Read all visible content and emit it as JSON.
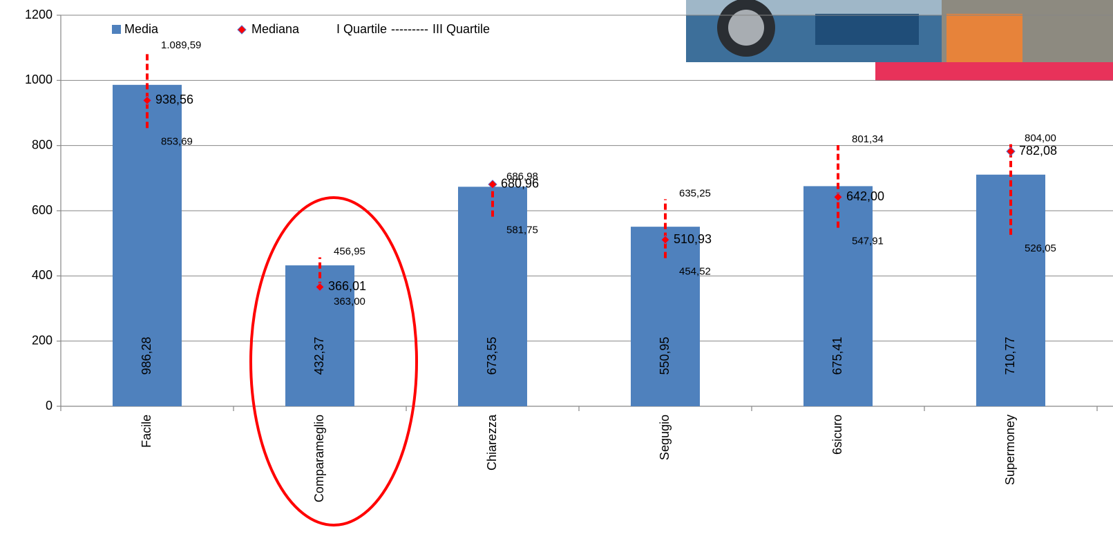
{
  "chart_data": {
    "type": "bar",
    "categories": [
      "Facile",
      "Comparameglio",
      "Chiarezza",
      "Segugio",
      "6sicuro",
      "Supermoney"
    ],
    "series": [
      {
        "name": "Media",
        "color": "#4f81bd",
        "values": [
          986.28,
          432.37,
          673.55,
          550.95,
          675.41,
          710.77
        ],
        "value_labels": [
          "986,28",
          "432,37",
          "673,55",
          "550,95",
          "675,41",
          "710,77"
        ]
      },
      {
        "name": "Mediana",
        "color": "#ff0000",
        "values": [
          938.56,
          366.01,
          680.96,
          510.93,
          642.0,
          782.08
        ],
        "value_labels": [
          "938,56",
          "366,01",
          "680,96",
          "510,93",
          "642,00",
          "782,08"
        ]
      },
      {
        "name": "I Quartile",
        "color": "#ff0000",
        "values": [
          853.69,
          363.0,
          581.75,
          454.52,
          547.91,
          526.05
        ],
        "value_labels": [
          "853,69",
          "363,00",
          "581,75",
          "454,52",
          "547,91",
          "526,05"
        ]
      },
      {
        "name": "III Quartile",
        "color": "#ff0000",
        "values": [
          1089.59,
          456.95,
          686.98,
          635.25,
          801.34,
          804.0
        ],
        "value_labels": [
          "1.089,59",
          "456,95",
          "686,98",
          "635,25",
          "801,34",
          "804,00"
        ]
      }
    ],
    "quartile_legend_separator": "---------",
    "ylim": [
      0,
      1200
    ],
    "yticks": [
      0,
      200,
      400,
      600,
      800,
      1000,
      1200
    ],
    "grid": true
  }
}
